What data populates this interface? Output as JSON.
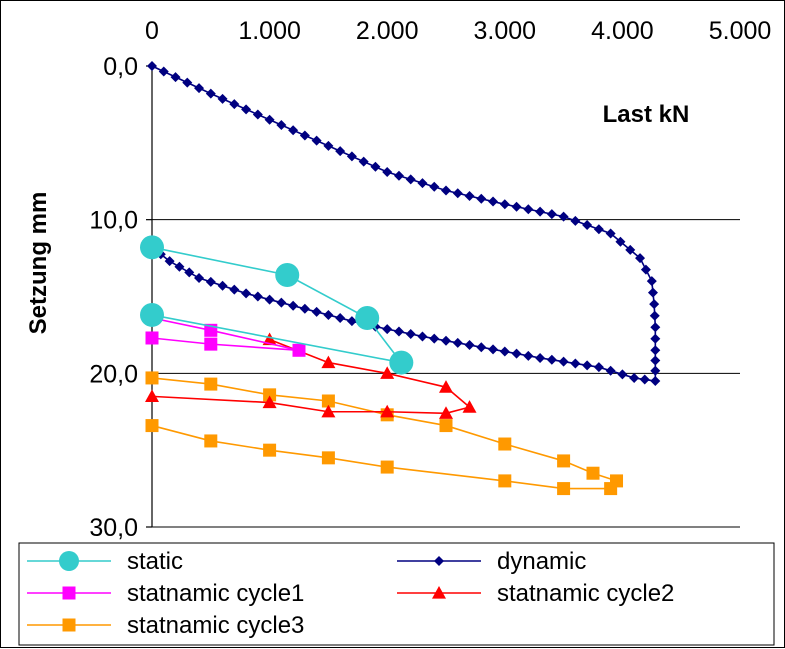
{
  "chart_data": {
    "type": "line",
    "x_axis": {
      "label": "Last kN",
      "min": 0,
      "max": 5000,
      "ticks": [
        0,
        1000,
        2000,
        3000,
        4000,
        5000
      ],
      "tick_labels": [
        "0",
        "1.000",
        "2.000",
        "3.000",
        "4.000",
        "5.000"
      ],
      "position": "top"
    },
    "y_axis": {
      "label": "Setzung  mm",
      "min": 0,
      "max": 30,
      "reversed": true,
      "ticks": [
        0,
        10,
        20,
        30
      ],
      "tick_labels": [
        "0,0",
        "10,0",
        "20,0",
        "30,0"
      ]
    },
    "grid": "horizontal",
    "legend_position": "bottom",
    "series": [
      {
        "name": "static",
        "color": "#33CCCC",
        "marker": "circle",
        "points": [
          [
            0,
            11.8
          ],
          [
            1150,
            13.6
          ],
          [
            1830,
            16.4
          ],
          [
            2120,
            19.3
          ],
          [
            0,
            16.2
          ]
        ]
      },
      {
        "name": "dynamic",
        "color": "#000080",
        "marker": "diamond",
        "points": [
          [
            0,
            0
          ],
          [
            500,
            1.8
          ],
          [
            1000,
            3.5
          ],
          [
            1500,
            5.2
          ],
          [
            2000,
            6.9
          ],
          [
            2500,
            8.1
          ],
          [
            3000,
            9.0
          ],
          [
            3500,
            9.8
          ],
          [
            3900,
            10.9
          ],
          [
            4150,
            12.5
          ],
          [
            4250,
            14.0
          ],
          [
            4270,
            15.5
          ],
          [
            4280,
            17.0
          ],
          [
            4280,
            18.5
          ],
          [
            4280,
            20.5
          ],
          [
            4100,
            20.3
          ],
          [
            3800,
            19.6
          ],
          [
            3300,
            19.0
          ],
          [
            2800,
            18.3
          ],
          [
            2300,
            17.6
          ],
          [
            1800,
            16.8
          ],
          [
            1300,
            15.8
          ],
          [
            800,
            14.8
          ],
          [
            400,
            13.8
          ],
          [
            150,
            12.7
          ],
          [
            0,
            11.8
          ]
        ]
      },
      {
        "name": "statnamic cycle1",
        "color": "#FF00FF",
        "marker": "square",
        "points": [
          [
            0,
            16.4
          ],
          [
            500,
            17.2
          ],
          [
            1250,
            18.5
          ],
          [
            500,
            18.1
          ],
          [
            0,
            17.7
          ]
        ]
      },
      {
        "name": "statnamic cycle2",
        "color": "#FF0000",
        "marker": "triangle",
        "points": [
          [
            1000,
            17.8
          ],
          [
            1500,
            19.3
          ],
          [
            2000,
            20.0
          ],
          [
            2500,
            20.9
          ],
          [
            2700,
            22.2
          ],
          [
            2500,
            22.6
          ],
          [
            2000,
            22.5
          ],
          [
            1500,
            22.5
          ],
          [
            1000,
            21.9
          ],
          [
            0,
            21.5
          ]
        ]
      },
      {
        "name": "statnamic cycle3",
        "color": "#FF9900",
        "marker": "square",
        "points": [
          [
            0,
            20.3
          ],
          [
            500,
            20.7
          ],
          [
            1000,
            21.4
          ],
          [
            1500,
            21.8
          ],
          [
            2000,
            22.7
          ],
          [
            2500,
            23.4
          ],
          [
            3000,
            24.6
          ],
          [
            3500,
            25.7
          ],
          [
            3750,
            26.5
          ],
          [
            3950,
            27.0
          ],
          [
            3900,
            27.5
          ],
          [
            3500,
            27.5
          ],
          [
            3000,
            27.0
          ],
          [
            2000,
            26.1
          ],
          [
            1500,
            25.5
          ],
          [
            1000,
            25.0
          ],
          [
            500,
            24.4
          ],
          [
            0,
            23.4
          ]
        ]
      }
    ],
    "legend_layout": [
      [
        "static",
        "dynamic"
      ],
      [
        "statnamic cycle1",
        "statnamic cycle2"
      ],
      [
        "statnamic cycle3"
      ]
    ]
  }
}
